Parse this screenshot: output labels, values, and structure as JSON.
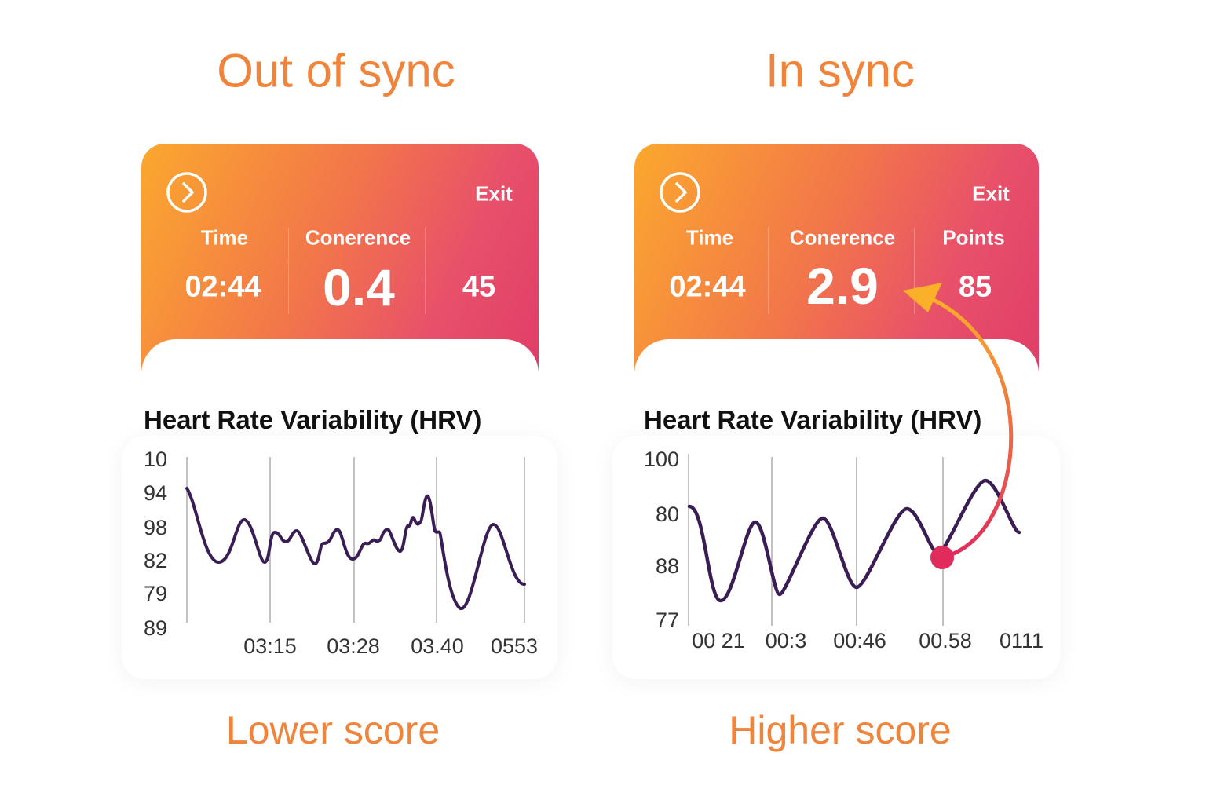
{
  "panels": [
    {
      "heading": "Out of sync",
      "card": {
        "exit": "Exit",
        "stats": [
          {
            "label": "Time",
            "value": "02:44"
          },
          {
            "label": "Conerence",
            "value": 0.4
          },
          {
            "value": 45
          }
        ]
      },
      "chart": {
        "title": "Heart Rate Variability (HRV)",
        "y_labels": [
          "10",
          "94",
          "98",
          "82",
          "79",
          "89"
        ],
        "x_labels": [
          "03:15",
          "03:28",
          "03.40",
          "0553"
        ]
      },
      "caption": "Lower score"
    },
    {
      "heading": "In sync",
      "card": {
        "exit": "Exit",
        "stats": [
          {
            "label": "Time",
            "value": "02:44"
          },
          {
            "label": "Conerence",
            "value": 2.9
          },
          {
            "label": "Points",
            "value": 85
          }
        ]
      },
      "chart": {
        "title": "Heart Rate Variability (HRV)",
        "y_labels": [
          "100",
          "80",
          "88",
          "77"
        ],
        "x_labels": [
          "00 21",
          "00:3",
          "00:46",
          "00.58",
          "0111"
        ]
      },
      "caption": "Higher score"
    }
  ]
}
